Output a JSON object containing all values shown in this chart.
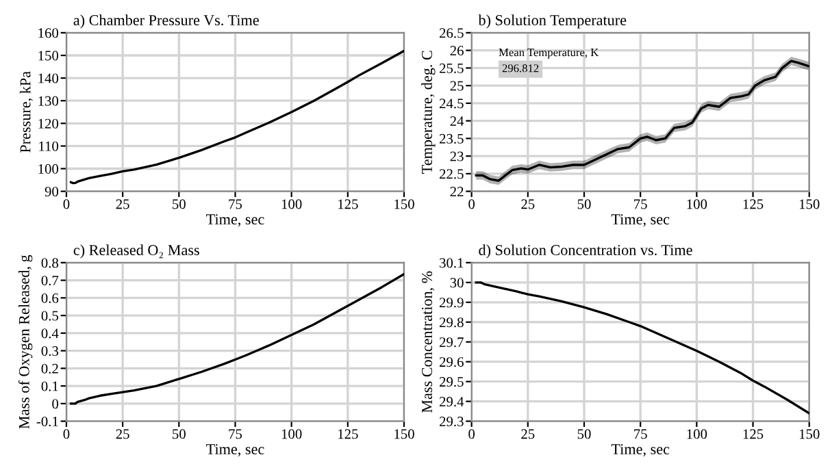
{
  "chart_data": [
    {
      "type": "line",
      "title": "a) Chamber Pressure Vs. Time",
      "xlabel": "Time, sec",
      "ylabel": "Pressure, kPa",
      "xlim": [
        0,
        150
      ],
      "xticks": [
        0,
        25,
        50,
        75,
        100,
        125,
        150
      ],
      "ylim": [
        90,
        160
      ],
      "yticks": [
        90,
        100,
        110,
        120,
        130,
        140,
        150,
        160
      ],
      "grid": true,
      "series": [
        {
          "color": "#000000",
          "x": [
            2,
            3,
            4,
            5,
            8,
            10,
            15,
            20,
            25,
            30,
            40,
            50,
            60,
            70,
            75,
            80,
            90,
            100,
            110,
            120,
            125,
            130,
            140,
            150
          ],
          "values": [
            94,
            93.6,
            93.7,
            94.3,
            95.2,
            95.8,
            96.8,
            97.7,
            98.8,
            99.6,
            101.8,
            104.8,
            108.2,
            112,
            113.8,
            116,
            120.3,
            125,
            130,
            135.5,
            138.3,
            141.2,
            146.5,
            152
          ]
        }
      ]
    },
    {
      "type": "line",
      "title": "b) Solution Temperature",
      "xlabel": "Time, sec",
      "ylabel": "Temperature, deg. C",
      "xlim": [
        0,
        150
      ],
      "xticks": [
        0,
        25,
        50,
        75,
        100,
        125,
        150
      ],
      "ylim": [
        22,
        26.5
      ],
      "yticks": [
        22,
        22.5,
        23,
        23.5,
        24,
        24.5,
        25,
        25.5,
        26,
        26.5
      ],
      "grid": true,
      "annotations": [
        "Mean Temperature, K",
        "296.812"
      ],
      "series": [
        {
          "color": "#000000",
          "x": [
            2,
            5,
            8,
            12,
            15,
            18,
            22,
            25,
            30,
            35,
            40,
            45,
            50,
            55,
            60,
            65,
            70,
            75,
            78,
            82,
            86,
            90,
            95,
            98,
            102,
            105,
            110,
            115,
            120,
            123,
            126,
            130,
            135,
            138,
            142,
            145,
            150
          ],
          "values": [
            22.45,
            22.45,
            22.35,
            22.3,
            22.45,
            22.6,
            22.65,
            22.62,
            22.75,
            22.68,
            22.7,
            22.75,
            22.75,
            22.9,
            23.05,
            23.2,
            23.25,
            23.5,
            23.55,
            23.45,
            23.5,
            23.8,
            23.85,
            23.95,
            24.35,
            24.45,
            24.4,
            24.65,
            24.7,
            24.75,
            25.0,
            25.15,
            25.25,
            25.5,
            25.7,
            25.65,
            25.55
          ],
          "lower": [
            22.33,
            22.33,
            22.23,
            22.18,
            22.33,
            22.48,
            22.53,
            22.5,
            22.63,
            22.56,
            22.58,
            22.63,
            22.63,
            22.78,
            22.93,
            23.08,
            23.13,
            23.38,
            23.43,
            23.33,
            23.38,
            23.68,
            23.73,
            23.83,
            24.23,
            24.33,
            24.28,
            24.53,
            24.58,
            24.63,
            24.88,
            25.03,
            25.13,
            25.38,
            25.58,
            25.53,
            25.43
          ],
          "upper": [
            22.57,
            22.57,
            22.47,
            22.42,
            22.57,
            22.72,
            22.77,
            22.74,
            22.87,
            22.8,
            22.82,
            22.87,
            22.87,
            23.02,
            23.17,
            23.32,
            23.37,
            23.62,
            23.67,
            23.57,
            23.62,
            23.92,
            23.97,
            24.07,
            24.47,
            24.57,
            24.52,
            24.77,
            24.82,
            24.87,
            25.12,
            25.27,
            25.37,
            25.62,
            25.82,
            25.77,
            25.67
          ]
        }
      ]
    },
    {
      "type": "line",
      "title": "c) Released O₂ Mass",
      "xlabel": "Time, sec",
      "ylabel": "Mass of Oxygen Released, g",
      "xlim": [
        0,
        150
      ],
      "xticks": [
        0,
        25,
        50,
        75,
        100,
        125,
        150
      ],
      "ylim": [
        -0.1,
        0.8
      ],
      "yticks": [
        {
          "value": -0.1,
          "label": "-0.1"
        },
        0,
        0.1,
        0.2,
        0.3,
        0.4,
        0.5,
        0.6,
        0.7,
        0.8
      ],
      "grid": true,
      "series": [
        {
          "color": "#000000",
          "x": [
            2,
            4,
            5,
            8,
            10,
            15,
            20,
            25,
            30,
            40,
            50,
            60,
            70,
            75,
            80,
            90,
            100,
            110,
            120,
            125,
            130,
            140,
            150
          ],
          "values": [
            0,
            0,
            0.01,
            0.02,
            0.03,
            0.045,
            0.055,
            0.065,
            0.075,
            0.1,
            0.14,
            0.18,
            0.225,
            0.25,
            0.275,
            0.33,
            0.39,
            0.45,
            0.52,
            0.555,
            0.59,
            0.66,
            0.735
          ]
        }
      ]
    },
    {
      "type": "line",
      "title": "d) Solution Concentration vs. Time",
      "xlabel": "Time, sec",
      "ylabel": "Mass Concentration, %",
      "xlim": [
        0,
        150
      ],
      "xticks": [
        0,
        25,
        50,
        75,
        100,
        125,
        150
      ],
      "ylim": [
        29.3,
        30.1
      ],
      "yticks": [
        29.3,
        29.4,
        29.5,
        29.6,
        29.7,
        29.8,
        29.9,
        {
          "value": 30,
          "label": "30"
        },
        30.1
      ],
      "grid": true,
      "series": [
        {
          "color": "#000000",
          "x": [
            2,
            4,
            6,
            10,
            20,
            25,
            30,
            40,
            50,
            60,
            70,
            75,
            80,
            90,
            100,
            110,
            120,
            125,
            130,
            140,
            150
          ],
          "values": [
            30.0,
            30.0,
            29.99,
            29.98,
            29.955,
            29.94,
            29.93,
            29.905,
            29.875,
            29.84,
            29.8,
            29.78,
            29.755,
            29.705,
            29.655,
            29.6,
            29.54,
            29.505,
            29.475,
            29.41,
            29.34
          ]
        }
      ]
    }
  ]
}
